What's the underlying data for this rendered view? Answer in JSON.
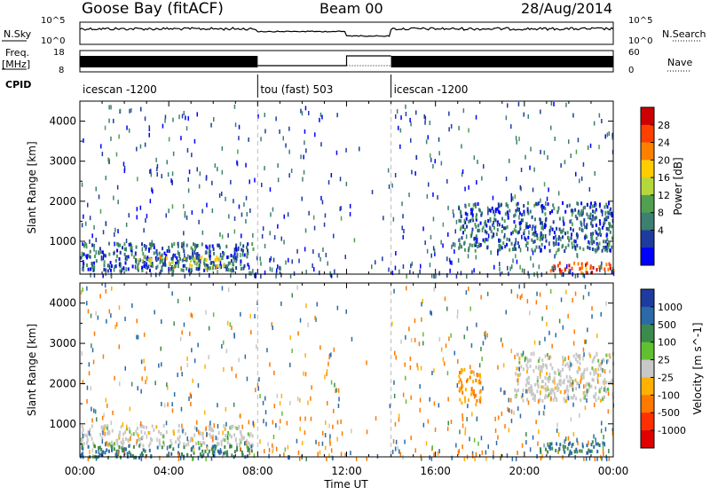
{
  "header": {
    "station": "Goose Bay (fitACF)",
    "beam": "Beam 00",
    "date": "28/Aug/2014"
  },
  "strip": {
    "nsky_label": "N.Sky",
    "nsearch_label": "N.Search",
    "freq_label": "Freq.",
    "freq_unit": "[MHz]",
    "nave_label": "Nave",
    "cpid_label": "CPID",
    "noise_ticks_left": [
      "10^5",
      "10^0"
    ],
    "noise_ticks_right": [
      "10^5",
      "10^0"
    ],
    "freq_ticks": [
      "18",
      "8"
    ],
    "nave_ticks": [
      "60",
      "0"
    ],
    "cpid_segments": [
      {
        "label": "icescan -1200",
        "start_h": 0,
        "end_h": 8
      },
      {
        "label": "tou (fast) 503",
        "start_h": 8,
        "end_h": 14
      },
      {
        "label": "icescan -1200",
        "start_h": 14,
        "end_h": 24
      }
    ]
  },
  "chart_data": [
    {
      "type": "heatmap",
      "title": "Power",
      "ylabel": "Slant Range [km]",
      "xlabel": "Time UT",
      "x_ticks": [
        "00:00",
        "04:00",
        "08:00",
        "12:00",
        "16:00",
        "20:00",
        "00:00"
      ],
      "xlim_hours": [
        0,
        24
      ],
      "ylim_km": [
        180,
        4500
      ],
      "y_ticks": [
        1000,
        2000,
        3000,
        4000
      ],
      "colorbar": {
        "label": "Power [dB]",
        "ticks": [
          "28",
          "24",
          "20",
          "16",
          "12",
          "8",
          "4"
        ],
        "colors": [
          "#cc0000",
          "#ff4000",
          "#ff8000",
          "#ffcc00",
          "#b4d83c",
          "#50a050",
          "#3c8070",
          "#1e3ca0",
          "#0000ff"
        ]
      },
      "echo_regions": [
        {
          "t0": 0.0,
          "t1": 7.8,
          "r0": 300,
          "r1": 1000,
          "level": 8
        },
        {
          "t0": 2.5,
          "t1": 6.5,
          "r0": 350,
          "r1": 650,
          "level": 16
        },
        {
          "t0": 17.0,
          "t1": 24.0,
          "r0": 800,
          "r1": 2000,
          "level": 8
        },
        {
          "t0": 21.0,
          "t1": 24.0,
          "r0": 250,
          "r1": 500,
          "level": 24
        }
      ]
    },
    {
      "type": "heatmap",
      "title": "Velocity",
      "ylabel": "Slant Range [km]",
      "xlabel": "Time UT",
      "x_ticks": [
        "00:00",
        "04:00",
        "08:00",
        "12:00",
        "16:00",
        "20:00",
        "00:00"
      ],
      "xlim_hours": [
        0,
        24
      ],
      "ylim_km": [
        180,
        4500
      ],
      "y_ticks": [
        1000,
        2000,
        3000,
        4000
      ],
      "colorbar": {
        "label": "Velocity [m s^-1]",
        "ticks": [
          "1000",
          "500",
          "100",
          "25",
          "-25",
          "-100",
          "-500",
          "-1000"
        ],
        "colors": [
          "#1e3ca0",
          "#2a6aa8",
          "#3c8a4c",
          "#60c030",
          "#c8c8c8",
          "#ffb000",
          "#ff7800",
          "#ff3000",
          "#e00000"
        ]
      },
      "echo_regions": [
        {
          "t0": 0.0,
          "t1": 7.8,
          "r0": 500,
          "r1": 1000,
          "level": 0
        },
        {
          "t0": 0.0,
          "t1": 7.8,
          "r0": 200,
          "r1": 500,
          "level": 100
        },
        {
          "t0": 17.0,
          "t1": 18.0,
          "r0": 1500,
          "r1": 2400,
          "level": -100
        },
        {
          "t0": 19.5,
          "t1": 24.0,
          "r0": 1600,
          "r1": 2800,
          "level": 0
        },
        {
          "t0": 20.5,
          "t1": 23.5,
          "r0": 300,
          "r1": 600,
          "level": 100
        }
      ]
    }
  ]
}
